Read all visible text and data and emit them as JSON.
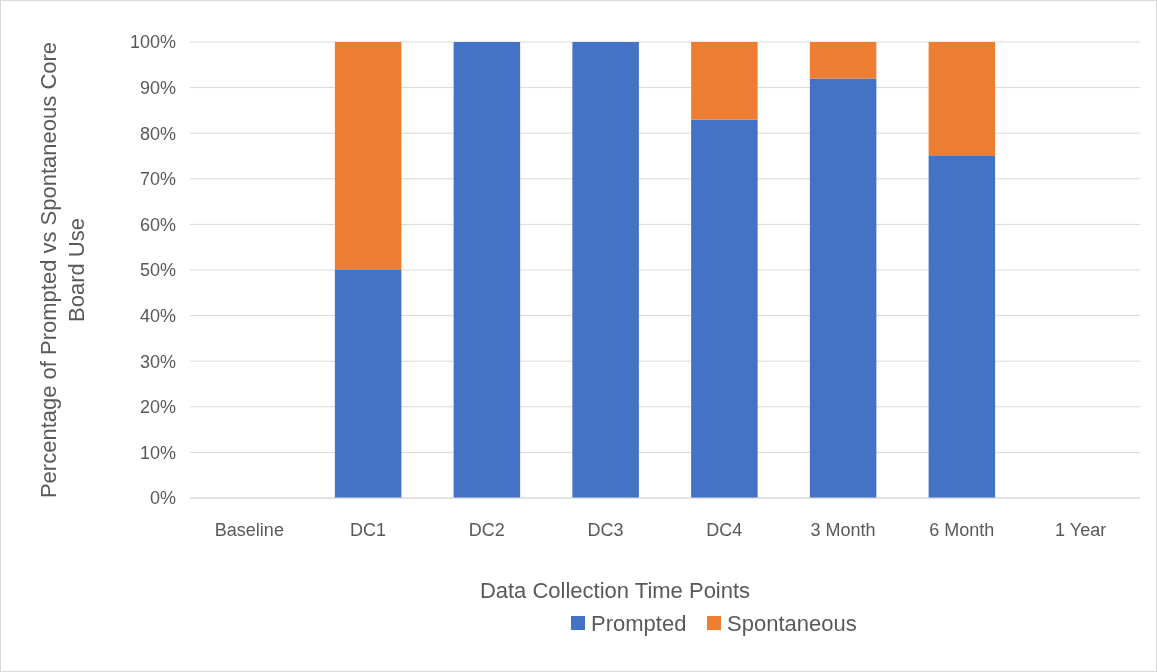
{
  "chart_data": {
    "type": "bar",
    "stacked": true,
    "xlabel": "Data Collection Time Points",
    "ylabel": "Percentage of Prompted vs Spontaneous Core Board Use",
    "categories": [
      "Baseline",
      "DC1",
      "DC2",
      "DC3",
      "DC4",
      "3 Month",
      "6 Month",
      "1 Year"
    ],
    "series": [
      {
        "name": "Prompted",
        "color": "#4472c4",
        "values": [
          null,
          50,
          100,
          100,
          83,
          92,
          75,
          null
        ]
      },
      {
        "name": "Spontaneous",
        "color": "#ed7d31",
        "values": [
          null,
          50,
          0,
          0,
          17,
          8,
          25,
          null
        ]
      }
    ],
    "ylim": [
      0,
      100
    ],
    "yticks": [
      {
        "value": 0,
        "label": "0%"
      },
      {
        "value": 10,
        "label": "10%"
      },
      {
        "value": 20,
        "label": "20%"
      },
      {
        "value": 30,
        "label": "30%"
      },
      {
        "value": 40,
        "label": "40%"
      },
      {
        "value": 50,
        "label": "50%"
      },
      {
        "value": 60,
        "label": "60%"
      },
      {
        "value": 70,
        "label": "70%"
      },
      {
        "value": 80,
        "label": "80%"
      },
      {
        "value": 90,
        "label": "90%"
      },
      {
        "value": 100,
        "label": "100%"
      }
    ],
    "grid": "y",
    "legend": "bottom"
  }
}
